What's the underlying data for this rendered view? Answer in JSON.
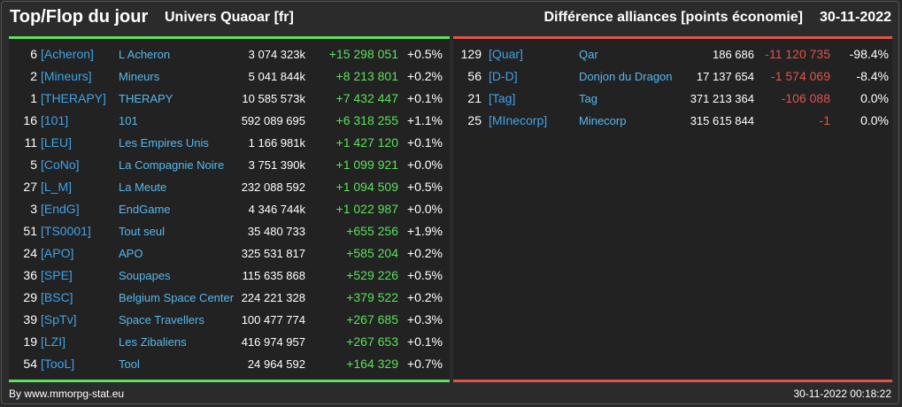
{
  "header": {
    "title": "Top/Flop du jour",
    "universe": "Univers Quaoar [fr]",
    "ranking_title": "Différence alliances [points économie]",
    "date": "30-11-2022"
  },
  "colors": {
    "positive": "#5ce15c",
    "negative": "#e0554a",
    "tag": "#3fa3e8"
  },
  "top": [
    {
      "rank": "6",
      "tag": "[Acheron]",
      "name": "L Acheron",
      "points": "3 074 323k",
      "diff": "+15 298 051",
      "pct": "+0.5%"
    },
    {
      "rank": "2",
      "tag": "[Mineurs]",
      "name": "Mineurs",
      "points": "5 041 844k",
      "diff": "+8 213 801",
      "pct": "+0.2%"
    },
    {
      "rank": "1",
      "tag": "[THERAPY]",
      "name": "THERAPY",
      "points": "10 585 573k",
      "diff": "+7 432 447",
      "pct": "+0.1%"
    },
    {
      "rank": "16",
      "tag": "[101]",
      "name": "101",
      "points": "592 089 695",
      "diff": "+6 318 255",
      "pct": "+1.1%"
    },
    {
      "rank": "11",
      "tag": "[LEU]",
      "name": "Les Empires Unis",
      "points": "1 166 981k",
      "diff": "+1 427 120",
      "pct": "+0.1%"
    },
    {
      "rank": "5",
      "tag": "[CoNo]",
      "name": "La Compagnie Noire",
      "points": "3 751 390k",
      "diff": "+1 099 921",
      "pct": "+0.0%"
    },
    {
      "rank": "27",
      "tag": "[L_M]",
      "name": "La Meute",
      "points": "232 088 592",
      "diff": "+1 094 509",
      "pct": "+0.5%"
    },
    {
      "rank": "3",
      "tag": "[EndG]",
      "name": "EndGame",
      "points": "4 346 744k",
      "diff": "+1 022 987",
      "pct": "+0.0%"
    },
    {
      "rank": "51",
      "tag": "[TS0001]",
      "name": "Tout seul",
      "points": "35 480 733",
      "diff": "+655 256",
      "pct": "+1.9%"
    },
    {
      "rank": "24",
      "tag": "[APO]",
      "name": "APO",
      "points": "325 531 817",
      "diff": "+585 204",
      "pct": "+0.2%"
    },
    {
      "rank": "36",
      "tag": "[SPE]",
      "name": "Soupapes",
      "points": "115 635 868",
      "diff": "+529 226",
      "pct": "+0.5%"
    },
    {
      "rank": "29",
      "tag": "[BSC]",
      "name": "Belgium Space Center",
      "points": "224 221 328",
      "diff": "+379 522",
      "pct": "+0.2%"
    },
    {
      "rank": "39",
      "tag": "[SpTv]",
      "name": "Space Travellers",
      "points": "100 477 774",
      "diff": "+267 685",
      "pct": "+0.3%"
    },
    {
      "rank": "19",
      "tag": "[LZI]",
      "name": "Les Zibaliens",
      "points": "416 974 957",
      "diff": "+267 653",
      "pct": "+0.1%"
    },
    {
      "rank": "54",
      "tag": "[TooL]",
      "name": "Tool",
      "points": "24 964 592",
      "diff": "+164 329",
      "pct": "+0.7%"
    }
  ],
  "flop": [
    {
      "rank": "129",
      "tag": "[Quar]",
      "name": "Qar",
      "points": "186 686",
      "diff": "-11 120 735",
      "pct": "-98.4%"
    },
    {
      "rank": "56",
      "tag": "[D-D]",
      "name": "Donjon du Dragon",
      "points": "17 137 654",
      "diff": "-1 574 069",
      "pct": "-8.4%"
    },
    {
      "rank": "21",
      "tag": "[Tag]",
      "name": "Tag",
      "points": "371 213 364",
      "diff": "-106 088",
      "pct": "0.0%"
    },
    {
      "rank": "25",
      "tag": "[MInecorp]",
      "name": "Minecorp",
      "points": "315 615 844",
      "diff": "-1",
      "pct": "0.0%"
    }
  ],
  "footer": {
    "source": "By www.mmorpg-stat.eu",
    "timestamp": "30-11-2022 00:18:22"
  }
}
